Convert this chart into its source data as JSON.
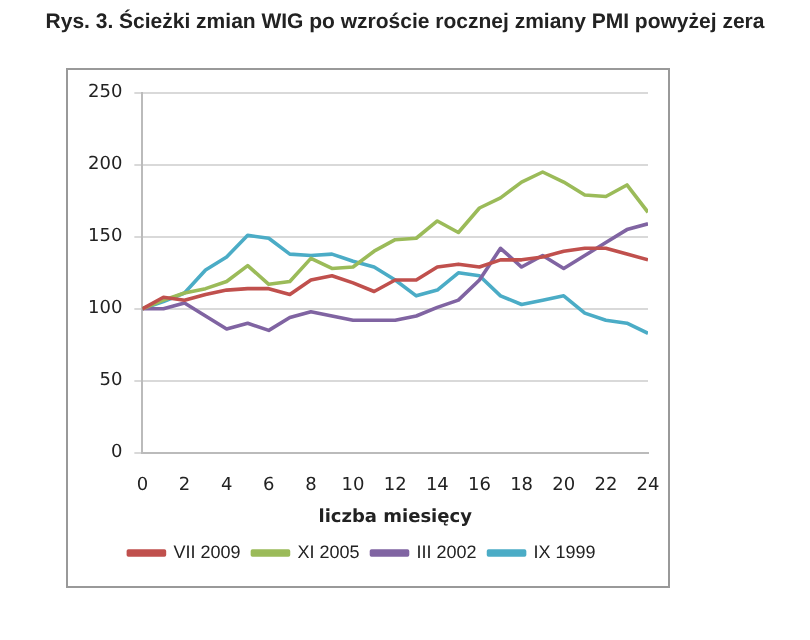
{
  "chart_data": {
    "type": "line",
    "title": "Rys. 3. Ścieżki zmian WIG po wzroście rocznej zmiany PMI powyżej zera",
    "xlabel": "liczba miesięcy",
    "x": [
      0,
      1,
      2,
      3,
      4,
      5,
      6,
      7,
      8,
      9,
      10,
      11,
      12,
      13,
      14,
      15,
      16,
      17,
      18,
      19,
      20,
      21,
      22,
      23,
      24
    ],
    "series": [
      {
        "name": "VII 2009",
        "color": "#c0504d",
        "values": [
          100,
          108,
          106,
          110,
          113,
          114,
          114,
          110,
          120,
          123,
          118,
          112,
          120,
          120,
          129,
          131,
          129,
          134,
          134,
          136,
          140,
          142,
          142,
          138,
          134
        ]
      },
      {
        "name": "XI 2005",
        "color": "#9bbb59",
        "values": [
          100,
          106,
          111,
          114,
          119,
          130,
          117,
          119,
          135,
          128,
          129,
          140,
          148,
          149,
          161,
          153,
          170,
          177,
          188,
          195,
          188,
          179,
          178,
          186,
          167
        ]
      },
      {
        "name": "III 2002",
        "color": "#8064a2",
        "values": [
          100,
          100,
          104,
          95,
          86,
          90,
          85,
          94,
          98,
          95,
          92,
          92,
          92,
          95,
          101,
          106,
          120,
          142,
          129,
          137,
          128,
          137,
          146,
          155,
          159
        ]
      },
      {
        "name": "IX 1999",
        "color": "#4bacc6",
        "values": [
          100,
          105,
          111,
          127,
          136,
          151,
          149,
          138,
          137,
          138,
          133,
          129,
          120,
          109,
          113,
          125,
          123,
          109,
          103,
          106,
          109,
          97,
          92,
          90,
          83
        ]
      }
    ],
    "xlim": [
      0,
      24
    ],
    "xticks": [
      0,
      2,
      4,
      6,
      8,
      10,
      12,
      14,
      16,
      18,
      20,
      22,
      24
    ],
    "ylim": [
      0,
      250
    ],
    "yticks": [
      0,
      50,
      100,
      150,
      200,
      250
    ],
    "grid": "y",
    "legend": "bottom",
    "marker": "none",
    "line_style": "solid"
  }
}
